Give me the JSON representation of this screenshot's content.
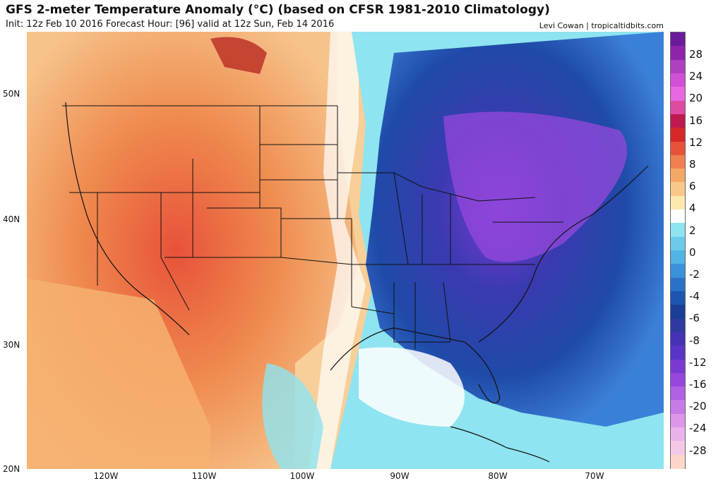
{
  "header": {
    "title": "GFS 2-meter Temperature Anomaly (°C) (based on CFSR 1981-2010 Climatology)",
    "subtitle": "Init: 12z Feb 10 2016   Forecast Hour: [96]   valid at 12z Sun, Feb 14 2016",
    "credit": "Levi Cowan | tropicaltidbits.com"
  },
  "map": {
    "lat_labels": [
      "50N",
      "40N",
      "30N",
      "20N"
    ],
    "lon_labels": [
      "120W",
      "110W",
      "100W",
      "90W",
      "80W",
      "70W"
    ],
    "colors": {
      "warm_strong": "#c0392b",
      "warm": "#ef8a4e",
      "warm_light": "#f6c38a",
      "neutral": "#ffffff",
      "cool_light": "#7fd6ee",
      "cool": "#3b80d8",
      "cold": "#1f4aa8",
      "very_cold": "#5a35c6",
      "extreme_cold": "#a64ad8"
    }
  },
  "colorbar": {
    "labels": [
      "28",
      "24",
      "20",
      "16",
      "12",
      "8",
      "6",
      "4",
      "2",
      "0",
      "-2",
      "-4",
      "-6",
      "-8",
      "-12",
      "-16",
      "-20",
      "-24",
      "-28"
    ],
    "colors": [
      "#6a1b9a",
      "#8e24aa",
      "#b040c0",
      "#d050d8",
      "#e868e0",
      "#e04aa0",
      "#c01850",
      "#d62828",
      "#e8523a",
      "#f08050",
      "#f4a868",
      "#f8c88a",
      "#fce8b0",
      "#ffffff",
      "#8ee4f0",
      "#6ccbe8",
      "#52b4e4",
      "#3a92da",
      "#2a72c8",
      "#1c56b0",
      "#1a3e96",
      "#2e3aa0",
      "#4432b4",
      "#5a34c6",
      "#7a3ad2",
      "#9648dc",
      "#b060e2",
      "#c87ae8",
      "#dc96ea",
      "#eab2ea",
      "#f4c8e6",
      "#fbd6c8"
    ]
  }
}
